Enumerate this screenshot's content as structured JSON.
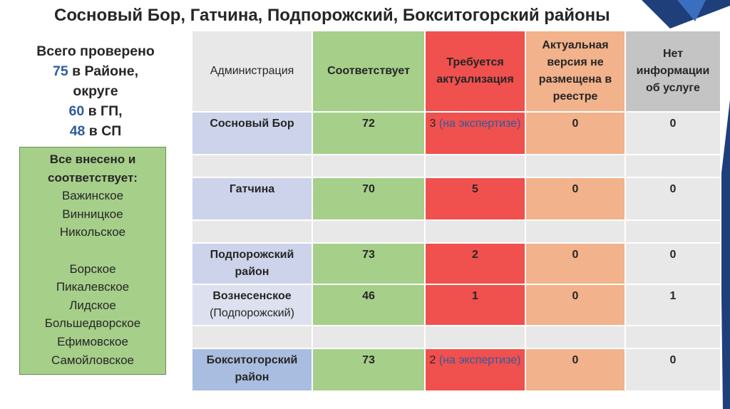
{
  "title": "Сосновый Бор, Гатчина, Подпорожский, Бокситогорский районы",
  "summary": {
    "line1": "Всего проверено",
    "raion_num": "75",
    "raion_text": " в Районе,",
    "okrug_text": "округе",
    "gp_num": "60",
    "gp_text": " в ГП,",
    "sp_num": "48",
    "sp_text": " в СП"
  },
  "green_box": {
    "head1": "Все внесено и",
    "head2": "соответствует:",
    "group1": [
      "Важинское",
      "Винницкое",
      "Никольское"
    ],
    "group2": [
      "Борское",
      "Пикалевское",
      "Лидское",
      "Большедворское",
      "Ефимовское",
      "Самойловское"
    ]
  },
  "table": {
    "headers": [
      "Администрация",
      "Соответствует",
      "Требуется актуализация",
      "Актуальная версия не размещена в реестре",
      "Нет информации об услуге"
    ],
    "rows": [
      {
        "admin": "Сосновый Бор",
        "admin_sub": "",
        "match": "72",
        "update": "3",
        "update_note": "(на экспертизе)",
        "not_placed": "0",
        "no_info": "0"
      },
      {
        "admin": "Гатчина",
        "admin_sub": "",
        "match": "70",
        "update": "5",
        "update_note": "",
        "not_placed": "0",
        "no_info": "0"
      },
      {
        "admin": "Подпорожский район",
        "admin_sub": "",
        "match": "73",
        "update": "2",
        "update_note": "",
        "not_placed": "0",
        "no_info": "0"
      },
      {
        "admin": "Вознесенское",
        "admin_sub": "(Подпорожский)",
        "match": "46",
        "update": "1",
        "update_note": "",
        "not_placed": "0",
        "no_info": "1"
      },
      {
        "admin": "Бокситогорский район",
        "admin_sub": "",
        "match": "73",
        "update": "2",
        "update_note": "(на экспертизе)",
        "not_placed": "0",
        "no_info": "0"
      }
    ]
  },
  "colors": {
    "green": "#a6cf8a",
    "red": "#f0504e",
    "orange": "#f2b28b",
    "gray": "#c4c4c4",
    "admin": "#dde1ef",
    "accent_blue": "#2e5c9e"
  }
}
